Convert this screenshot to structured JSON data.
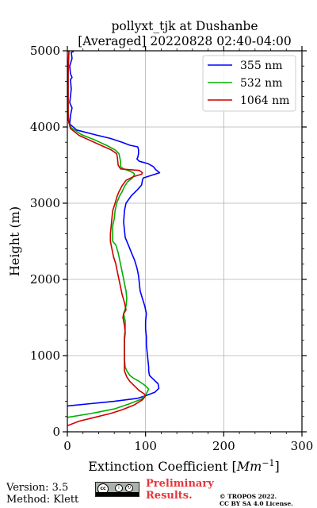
{
  "chart_data": {
    "type": "line",
    "title_line1": "pollyxt_tjk at Dushanbe",
    "title_line2": "[Averaged] 20220828 02:40-04:00",
    "xlabel": "Extinction Coefficient [",
    "xlabel_unit": "Mm",
    "xlabel_exp": "−1",
    "xlabel_close": "]",
    "ylabel": "Height (m)",
    "xlim": [
      0,
      300
    ],
    "ylim": [
      0,
      5000
    ],
    "xticks": [
      0,
      100,
      200,
      300
    ],
    "yticks": [
      0,
      1000,
      2000,
      3000,
      4000,
      5000
    ],
    "grid": true,
    "legend_position": "top-right",
    "series": [
      {
        "name": "355 nm",
        "color": "#0000ff",
        "points": [
          [
            0,
            340
          ],
          [
            30,
            370
          ],
          [
            60,
            400
          ],
          [
            90,
            440
          ],
          [
            102,
            480
          ],
          [
            112,
            520
          ],
          [
            117,
            570
          ],
          [
            116,
            630
          ],
          [
            110,
            690
          ],
          [
            105,
            740
          ],
          [
            104,
            800
          ],
          [
            104,
            850
          ],
          [
            103,
            950
          ],
          [
            102,
            1050
          ],
          [
            101,
            1150
          ],
          [
            101,
            1250
          ],
          [
            100,
            1350
          ],
          [
            100,
            1450
          ],
          [
            101,
            1550
          ],
          [
            99,
            1650
          ],
          [
            96,
            1750
          ],
          [
            93,
            1850
          ],
          [
            92,
            1950
          ],
          [
            91,
            2050
          ],
          [
            89,
            2150
          ],
          [
            86,
            2250
          ],
          [
            82,
            2350
          ],
          [
            78,
            2450
          ],
          [
            74,
            2550
          ],
          [
            73,
            2650
          ],
          [
            72,
            2750
          ],
          [
            73,
            2900
          ],
          [
            75,
            3000
          ],
          [
            82,
            3100
          ],
          [
            90,
            3180
          ],
          [
            95,
            3240
          ],
          [
            96,
            3300
          ],
          [
            97,
            3330
          ],
          [
            112,
            3380
          ],
          [
            118,
            3400
          ],
          [
            113,
            3440
          ],
          [
            110,
            3480
          ],
          [
            103,
            3520
          ],
          [
            92,
            3550
          ],
          [
            89,
            3580
          ],
          [
            90,
            3600
          ],
          [
            91,
            3650
          ],
          [
            91,
            3700
          ],
          [
            90,
            3740
          ],
          [
            80,
            3760
          ],
          [
            70,
            3800
          ],
          [
            55,
            3850
          ],
          [
            35,
            3900
          ],
          [
            12,
            3960
          ],
          [
            3,
            4040
          ],
          [
            4,
            4150
          ],
          [
            6,
            4250
          ],
          [
            3,
            4320
          ],
          [
            4,
            4400
          ],
          [
            5,
            4500
          ],
          [
            4,
            4620
          ],
          [
            6,
            4650
          ],
          [
            4,
            4700
          ],
          [
            3,
            4800
          ],
          [
            6,
            4900
          ],
          [
            5,
            4980
          ],
          [
            8,
            4990
          ]
        ]
      },
      {
        "name": "532 nm",
        "color": "#00b000",
        "points": [
          [
            0,
            190
          ],
          [
            30,
            240
          ],
          [
            60,
            300
          ],
          [
            80,
            370
          ],
          [
            95,
            430
          ],
          [
            101,
            500
          ],
          [
            104,
            560
          ],
          [
            99,
            610
          ],
          [
            92,
            660
          ],
          [
            85,
            700
          ],
          [
            80,
            740
          ],
          [
            76,
            800
          ],
          [
            74,
            850
          ],
          [
            73,
            950
          ],
          [
            73,
            1050
          ],
          [
            73,
            1150
          ],
          [
            73,
            1250
          ],
          [
            74,
            1350
          ],
          [
            74,
            1450
          ],
          [
            72,
            1550
          ],
          [
            75,
            1650
          ],
          [
            76,
            1750
          ],
          [
            75,
            1850
          ],
          [
            73,
            1950
          ],
          [
            71,
            2050
          ],
          [
            69,
            2150
          ],
          [
            67,
            2250
          ],
          [
            65,
            2350
          ],
          [
            62,
            2450
          ],
          [
            58,
            2500
          ],
          [
            58,
            2600
          ],
          [
            58,
            2700
          ],
          [
            60,
            2800
          ],
          [
            61,
            2900
          ],
          [
            63,
            3000
          ],
          [
            67,
            3100
          ],
          [
            70,
            3150
          ],
          [
            73,
            3220
          ],
          [
            77,
            3280
          ],
          [
            83,
            3330
          ],
          [
            86,
            3380
          ],
          [
            84,
            3400
          ],
          [
            80,
            3420
          ],
          [
            72,
            3450
          ],
          [
            68,
            3480
          ],
          [
            68,
            3550
          ],
          [
            67,
            3600
          ],
          [
            66,
            3650
          ],
          [
            61,
            3700
          ],
          [
            50,
            3760
          ],
          [
            35,
            3830
          ],
          [
            18,
            3900
          ],
          [
            5,
            3990
          ],
          [
            2,
            4050
          ],
          [
            1,
            4200
          ],
          [
            1,
            4500
          ],
          [
            1,
            4800
          ],
          [
            2,
            5000
          ]
        ]
      },
      {
        "name": "1064 nm",
        "color": "#cc0000",
        "points": [
          [
            0,
            80
          ],
          [
            15,
            140
          ],
          [
            35,
            190
          ],
          [
            55,
            240
          ],
          [
            70,
            290
          ],
          [
            85,
            350
          ],
          [
            96,
            420
          ],
          [
            100,
            470
          ],
          [
            98,
            500
          ],
          [
            92,
            540
          ],
          [
            86,
            600
          ],
          [
            80,
            660
          ],
          [
            76,
            720
          ],
          [
            73,
            800
          ],
          [
            73,
            900
          ],
          [
            73,
            1000
          ],
          [
            73,
            1100
          ],
          [
            73,
            1200
          ],
          [
            74,
            1300
          ],
          [
            73,
            1400
          ],
          [
            71,
            1500
          ],
          [
            72,
            1550
          ],
          [
            75,
            1600
          ],
          [
            73,
            1700
          ],
          [
            70,
            1800
          ],
          [
            68,
            1900
          ],
          [
            66,
            2000
          ],
          [
            64,
            2100
          ],
          [
            62,
            2200
          ],
          [
            59,
            2300
          ],
          [
            57,
            2400
          ],
          [
            55,
            2500
          ],
          [
            55,
            2600
          ],
          [
            56,
            2700
          ],
          [
            57,
            2800
          ],
          [
            58,
            2900
          ],
          [
            61,
            3000
          ],
          [
            64,
            3100
          ],
          [
            66,
            3150
          ],
          [
            70,
            3230
          ],
          [
            75,
            3300
          ],
          [
            85,
            3350
          ],
          [
            95,
            3380
          ],
          [
            96,
            3400
          ],
          [
            92,
            3430
          ],
          [
            80,
            3440
          ],
          [
            68,
            3450
          ],
          [
            65,
            3500
          ],
          [
            64,
            3600
          ],
          [
            63,
            3650
          ],
          [
            56,
            3700
          ],
          [
            45,
            3750
          ],
          [
            30,
            3820
          ],
          [
            15,
            3890
          ],
          [
            4,
            3980
          ],
          [
            1,
            4100
          ],
          [
            1,
            4400
          ],
          [
            1,
            4700
          ],
          [
            2,
            5000
          ]
        ]
      }
    ]
  },
  "footer": {
    "version": "Version: 3.5",
    "method": "Method: Klett",
    "preliminary_line1": "Preliminary",
    "preliminary_line2": "Results.",
    "copyright_line1": "© TROPOS 2022.",
    "copyright_line2": "CC BY SA 4.0 License.",
    "license_badge_icon": "cc-by-sa-badge"
  }
}
